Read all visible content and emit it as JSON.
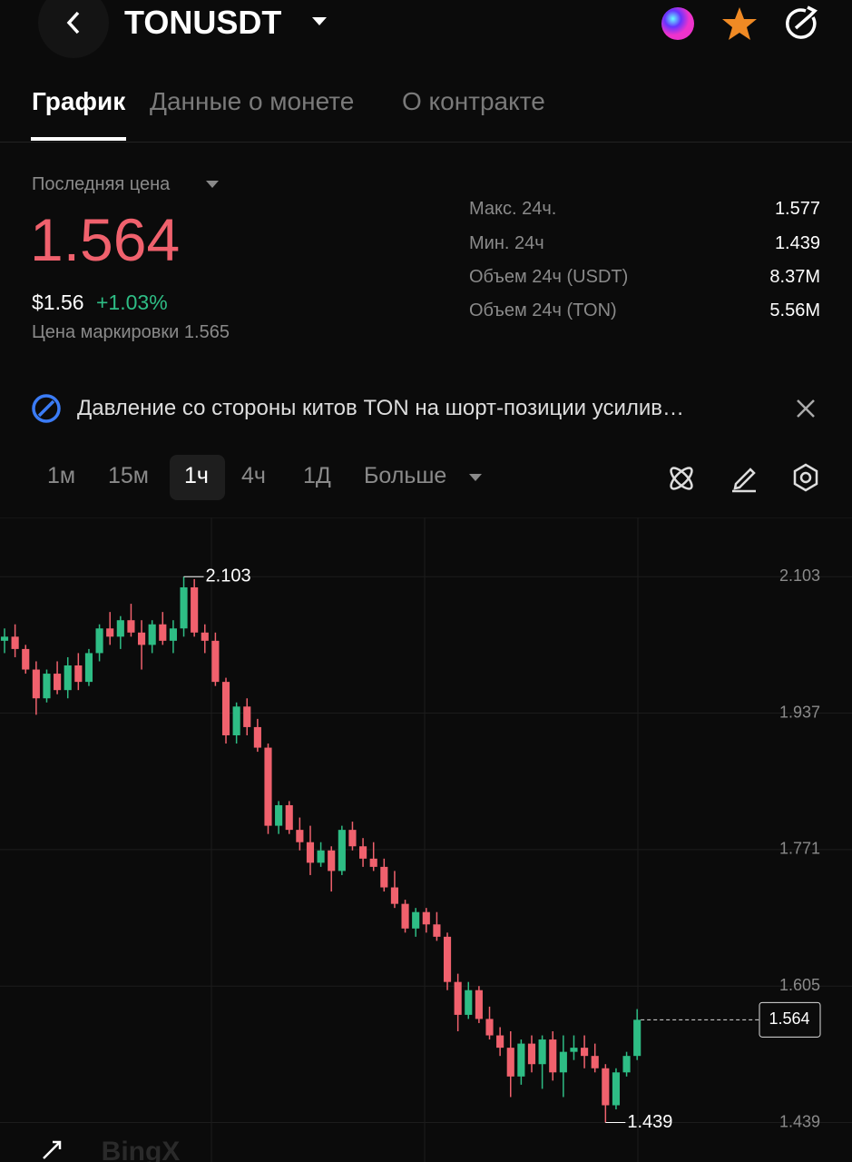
{
  "header": {
    "title": "TONUSDT"
  },
  "tabs": [
    "График",
    "Данные о монете",
    "О контракте"
  ],
  "price": {
    "label": "Последняя цена",
    "last": "1.564",
    "usd": "$1.56",
    "change": "+1.03%",
    "mark": "Цена маркировки 1.565"
  },
  "stats": [
    [
      "Макс. 24ч.",
      "1.577"
    ],
    [
      "Мин. 24ч",
      "1.439"
    ],
    [
      "Объем 24ч (USDT)",
      "8.37M"
    ],
    [
      "Объем 24ч (TON)",
      "5.56M"
    ]
  ],
  "news": "Давление со стороны китов TON на шорт-позиции усилив…",
  "intervals": [
    "1м",
    "15м",
    "1ч",
    "4ч",
    "1Д",
    "Больше"
  ],
  "chart": {
    "type": "candlestick",
    "open": [
      2.025,
      2.03,
      2.015,
      1.99,
      1.955,
      1.985,
      1.965,
      1.995,
      1.975,
      2.01,
      2.04,
      2.03,
      2.05,
      2.035,
      2.02,
      2.045,
      2.025,
      2.04,
      2.09,
      2.035,
      2.025,
      1.975,
      1.91,
      1.945,
      1.92,
      1.895,
      1.8,
      1.825,
      1.795,
      1.78,
      1.755,
      1.77,
      1.745,
      1.795,
      1.775,
      1.76,
      1.75,
      1.725,
      1.705,
      1.675,
      1.695,
      1.68,
      1.665,
      1.61,
      1.57,
      1.6,
      1.565,
      1.545,
      1.53,
      1.495,
      1.535,
      1.51,
      1.54,
      1.5,
      1.525,
      1.53,
      1.52,
      1.505,
      1.46,
      1.5,
      1.52
    ],
    "high": [
      2.04,
      2.045,
      2.02,
      2.0,
      1.99,
      2.0,
      2.005,
      2.01,
      2.015,
      2.045,
      2.06,
      2.055,
      2.07,
      2.05,
      2.05,
      2.06,
      2.05,
      2.103,
      2.1,
      2.045,
      2.035,
      1.98,
      1.95,
      1.955,
      1.93,
      1.9,
      1.83,
      1.83,
      1.81,
      1.8,
      1.78,
      1.775,
      1.8,
      1.805,
      1.785,
      1.78,
      1.76,
      1.745,
      1.71,
      1.7,
      1.7,
      1.695,
      1.67,
      1.62,
      1.61,
      1.605,
      1.58,
      1.555,
      1.55,
      1.54,
      1.545,
      1.545,
      1.55,
      1.545,
      1.545,
      1.545,
      1.535,
      1.51,
      1.505,
      1.525,
      1.577
    ],
    "low": [
      2.01,
      2.005,
      1.985,
      1.935,
      1.95,
      1.96,
      1.955,
      1.965,
      1.97,
      2.0,
      2.02,
      2.015,
      2.03,
      1.99,
      2.01,
      2.02,
      2.01,
      2.03,
      2.03,
      2.01,
      1.97,
      1.9,
      1.9,
      1.91,
      1.89,
      1.79,
      1.79,
      1.79,
      1.77,
      1.74,
      1.75,
      1.72,
      1.74,
      1.77,
      1.75,
      1.745,
      1.72,
      1.7,
      1.67,
      1.665,
      1.67,
      1.66,
      1.6,
      1.55,
      1.565,
      1.56,
      1.54,
      1.52,
      1.47,
      1.485,
      1.5,
      1.48,
      1.49,
      1.47,
      1.515,
      1.505,
      1.5,
      1.439,
      1.455,
      1.495,
      1.515
    ],
    "close": [
      2.03,
      2.015,
      1.99,
      1.955,
      1.985,
      1.965,
      1.995,
      1.975,
      2.01,
      2.04,
      2.03,
      2.05,
      2.035,
      2.02,
      2.045,
      2.025,
      2.04,
      2.09,
      2.035,
      2.025,
      1.975,
      1.91,
      1.945,
      1.92,
      1.895,
      1.8,
      1.825,
      1.795,
      1.78,
      1.755,
      1.77,
      1.745,
      1.795,
      1.775,
      1.76,
      1.75,
      1.725,
      1.705,
      1.675,
      1.695,
      1.68,
      1.665,
      1.61,
      1.57,
      1.6,
      1.565,
      1.545,
      1.53,
      1.495,
      1.535,
      1.51,
      1.54,
      1.5,
      1.525,
      1.53,
      1.52,
      1.505,
      1.46,
      1.5,
      1.52,
      1.564
    ],
    "up_color": "#2ebd85",
    "down_color": "#f0616d",
    "ylim": [
      1.391,
      2.175
    ],
    "yticks": [
      1.439,
      1.605,
      1.771,
      1.937,
      2.103
    ],
    "max_label": 2.103,
    "min_label": 1.439,
    "last_price": 1.564,
    "watermark": "BingX"
  }
}
